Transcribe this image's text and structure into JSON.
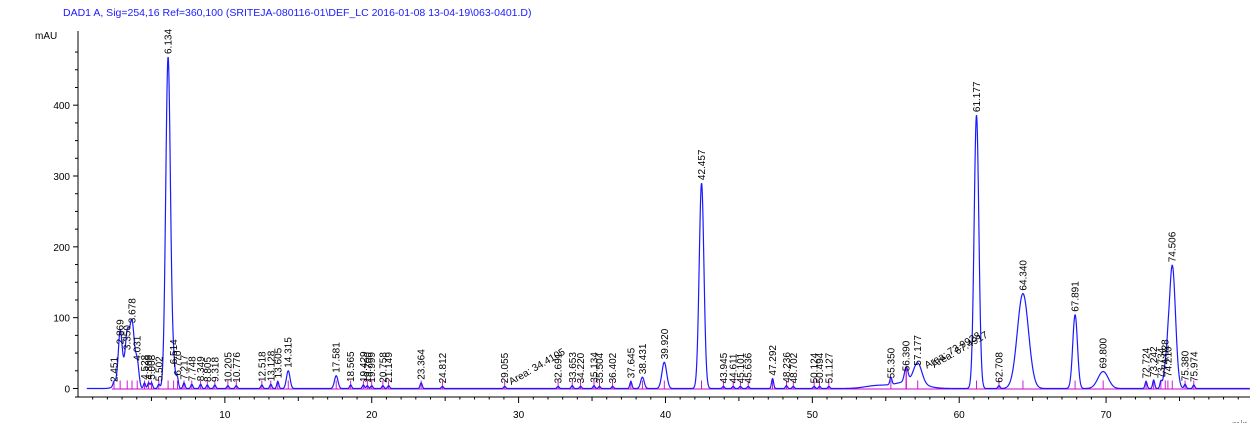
{
  "chart_data": {
    "type": "line",
    "title": "DAD1 A, Sig=254,16 Ref=360,100 (SRITEJA-080116-01\\DEF_LC 2016-01-08 13-04-19\\063-0401.D)",
    "ylabel": "mAU",
    "xlabel": "min",
    "xlim": [
      0,
      79.8
    ],
    "ylim": [
      -5,
      500
    ],
    "xticks": [
      10,
      20,
      30,
      40,
      50,
      60,
      70
    ],
    "yticks": [
      0,
      100,
      200,
      300,
      400
    ],
    "grid": false,
    "colors": {
      "title": "#1a1aff",
      "signal": "#1a1aff",
      "baseline": "#cc00cc",
      "axis": "#000000"
    },
    "peaks": [
      {
        "x": 2.451,
        "y": 5,
        "label": "2.451"
      },
      {
        "x": 2.869,
        "y": 58,
        "label": "2.869"
      },
      {
        "x": 3.35,
        "y": 50,
        "label": "3.350"
      },
      {
        "x": 3.678,
        "y": 88,
        "label": "3.678"
      },
      {
        "x": 4.031,
        "y": 35,
        "label": "4.031"
      },
      {
        "x": 4.528,
        "y": 8,
        "label": "4.528"
      },
      {
        "x": 4.809,
        "y": 8,
        "label": "4.809"
      },
      {
        "x": 5.008,
        "y": 8,
        "label": "5.008"
      },
      {
        "x": 5.502,
        "y": 6,
        "label": "5.502"
      },
      {
        "x": 6.134,
        "y": 468,
        "label": "6.134"
      },
      {
        "x": 6.514,
        "y": 30,
        "label": "6.514"
      },
      {
        "x": 6.77,
        "y": 14,
        "label": "6.770"
      },
      {
        "x": 7.217,
        "y": 8,
        "label": "7.217"
      },
      {
        "x": 7.748,
        "y": 6,
        "label": "7.748"
      },
      {
        "x": 8.349,
        "y": 6,
        "label": "8.349"
      },
      {
        "x": 8.805,
        "y": 5,
        "label": "8.805"
      },
      {
        "x": 9.318,
        "y": 5,
        "label": "9.318"
      },
      {
        "x": 10.205,
        "y": 4,
        "label": "10.205"
      },
      {
        "x": 10.776,
        "y": 4,
        "label": "10.776"
      },
      {
        "x": 12.518,
        "y": 5,
        "label": "12.518"
      },
      {
        "x": 13.128,
        "y": 6,
        "label": "13.128"
      },
      {
        "x": 13.605,
        "y": 10,
        "label": "13.605"
      },
      {
        "x": 14.315,
        "y": 25,
        "label": "14.315"
      },
      {
        "x": 17.581,
        "y": 18,
        "label": "17.581"
      },
      {
        "x": 18.565,
        "y": 5,
        "label": "18.565"
      },
      {
        "x": 19.429,
        "y": 5,
        "label": "19.429"
      },
      {
        "x": 19.7,
        "y": 4,
        "label": "19.700"
      },
      {
        "x": 19.999,
        "y": 4,
        "label": "19.999"
      },
      {
        "x": 20.758,
        "y": 4,
        "label": "20.758"
      },
      {
        "x": 21.149,
        "y": 4,
        "label": "21.149"
      },
      {
        "x": 23.364,
        "y": 8,
        "label": "23.364"
      },
      {
        "x": 24.812,
        "y": 3,
        "label": "24.812"
      },
      {
        "x": 29.055,
        "y": 3,
        "label": "29.055"
      },
      {
        "x": 32.691,
        "y": 3,
        "label": "32.691"
      },
      {
        "x": 33.653,
        "y": 4,
        "label": "33.653"
      },
      {
        "x": 34.22,
        "y": 3,
        "label": "34.220"
      },
      {
        "x": 35.134,
        "y": 4,
        "label": "35.134"
      },
      {
        "x": 35.504,
        "y": 3,
        "label": "35.504"
      },
      {
        "x": 36.402,
        "y": 3,
        "label": "36.402"
      },
      {
        "x": 37.645,
        "y": 10,
        "label": "37.645"
      },
      {
        "x": 38.431,
        "y": 16,
        "label": "38.431"
      },
      {
        "x": 39.92,
        "y": 37,
        "label": "39.920"
      },
      {
        "x": 42.457,
        "y": 290,
        "label": "42.457"
      },
      {
        "x": 43.945,
        "y": 3,
        "label": "43.945"
      },
      {
        "x": 44.611,
        "y": 3,
        "label": "44.611"
      },
      {
        "x": 45.101,
        "y": 3,
        "label": "45.101"
      },
      {
        "x": 45.636,
        "y": 3,
        "label": "45.636"
      },
      {
        "x": 47.292,
        "y": 14,
        "label": "47.292"
      },
      {
        "x": 48.236,
        "y": 4,
        "label": "48.236"
      },
      {
        "x": 48.702,
        "y": 3,
        "label": "48.702"
      },
      {
        "x": 50.124,
        "y": 3,
        "label": "50.124"
      },
      {
        "x": 50.494,
        "y": 3,
        "label": "50.494"
      },
      {
        "x": 51.127,
        "y": 3,
        "label": "51.127"
      },
      {
        "x": 55.35,
        "y": 10,
        "label": "55.350"
      },
      {
        "x": 56.39,
        "y": 20,
        "label": "56.390"
      },
      {
        "x": 57.177,
        "y": 28,
        "label": "57.177"
      },
      {
        "x": 61.177,
        "y": 386,
        "label": "61.177"
      },
      {
        "x": 62.708,
        "y": 4,
        "label": "62.708"
      },
      {
        "x": 64.34,
        "y": 134,
        "label": "64.340"
      },
      {
        "x": 67.891,
        "y": 104,
        "label": "67.891"
      },
      {
        "x": 69.8,
        "y": 24,
        "label": "69.800"
      },
      {
        "x": 72.724,
        "y": 10,
        "label": "72.724"
      },
      {
        "x": 73.242,
        "y": 12,
        "label": "73.242"
      },
      {
        "x": 73.734,
        "y": 10,
        "label": "73.734"
      },
      {
        "x": 74.028,
        "y": 22,
        "label": "74.028"
      },
      {
        "x": 74.21,
        "y": 12,
        "label": "74.210"
      },
      {
        "x": 74.506,
        "y": 174,
        "label": "74.506"
      },
      {
        "x": 75.38,
        "y": 6,
        "label": "75.380"
      },
      {
        "x": 75.974,
        "y": 5,
        "label": "75.974"
      }
    ],
    "annotations": [
      {
        "x": 29.5,
        "y": 2,
        "label": "Area: 34.4105"
      },
      {
        "x": 57.8,
        "y": 25,
        "label": "Area: 73.9928"
      },
      {
        "x": 58.3,
        "y": 26,
        "label": "Area: 67.4917"
      }
    ]
  }
}
